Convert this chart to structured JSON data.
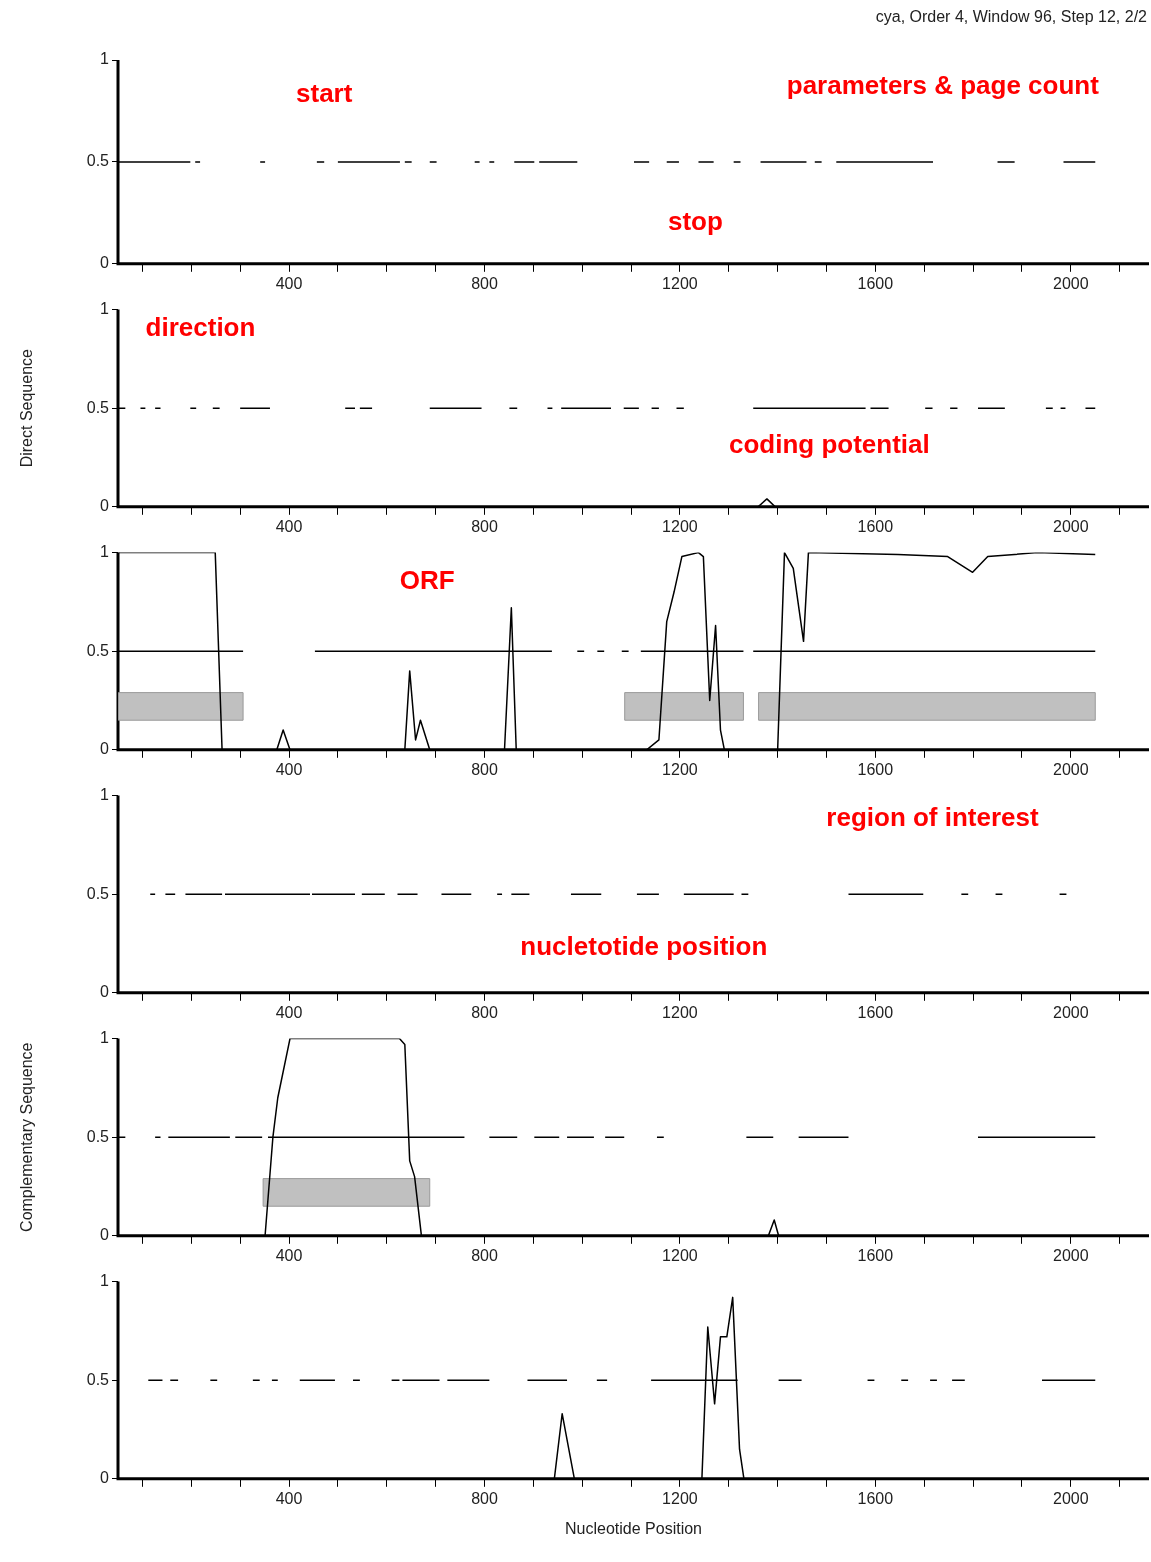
{
  "chart_data": [
    {
      "type": "line",
      "title": "cya, Order 4, Window 96, Step 12, 2/2",
      "xlim": [
        50,
        2160
      ],
      "ylim": [
        0,
        1
      ],
      "yticks": [
        0,
        0.5,
        1
      ],
      "xticks": [
        {
          "value": 100,
          "label": null
        },
        {
          "value": 200,
          "label": null
        },
        {
          "value": 300,
          "label": null
        },
        400,
        {
          "value": 500,
          "label": null
        },
        {
          "value": 600,
          "label": null
        },
        {
          "value": 700,
          "label": null
        },
        800,
        {
          "value": 900,
          "label": null
        },
        {
          "value": 1000,
          "label": null
        },
        {
          "value": 1100,
          "label": null
        },
        1200,
        {
          "value": 1300,
          "label": null
        },
        {
          "value": 1400,
          "label": null
        },
        {
          "value": 1500,
          "label": null
        },
        1600,
        {
          "value": 1700,
          "label": null
        },
        {
          "value": 1800,
          "label": null
        },
        {
          "value": 1900,
          "label": null
        },
        2000,
        {
          "value": 2100,
          "label": null
        }
      ],
      "grid": false,
      "legend": false,
      "marker": "none",
      "series": [
        {
          "color": "#000000",
          "x": [
            51,
            198,
            null,
            208,
            218,
            null,
            341,
            351,
            null,
            457,
            472,
            null,
            500,
            627,
            null,
            637,
            651,
            null,
            688,
            702,
            null,
            780,
            790,
            null,
            810,
            820,
            null,
            861,
            902,
            null,
            912,
            990,
            null,
            1106,
            1137,
            null,
            1173,
            1198,
            null,
            1238,
            1269,
            null,
            1310,
            1324,
            null,
            1365,
            1459,
            null,
            1476,
            1490,
            null,
            1520,
            1718,
            null,
            1850,
            1885,
            null,
            1985,
            2050
          ],
          "values": [
            0.5,
            0.5,
            null,
            0.5,
            0.5,
            null,
            0.5,
            0.5,
            null,
            0.5,
            0.5,
            null,
            0.5,
            0.5,
            null,
            0.5,
            0.5,
            null,
            0.5,
            0.5,
            null,
            0.5,
            0.5,
            null,
            0.5,
            0.5,
            null,
            0.5,
            0.5,
            null,
            0.5,
            0.5,
            null,
            0.5,
            0.5,
            null,
            0.5,
            0.5,
            null,
            0.5,
            0.5,
            null,
            0.5,
            0.5,
            null,
            0.5,
            0.5,
            null,
            0.5,
            0.5,
            null,
            0.5,
            0.5,
            null,
            0.5,
            0.5,
            null,
            0.5,
            0.5
          ]
        }
      ],
      "annotations": [
        "start",
        "stop",
        "parameters & page count"
      ]
    },
    {
      "type": "line",
      "ylabel": "Direct Sequence",
      "xlim": [
        50,
        2160
      ],
      "ylim": [
        0,
        1
      ],
      "yticks": [
        0,
        0.5,
        1
      ],
      "xticks": [
        {
          "value": 100,
          "label": null
        },
        {
          "value": 200,
          "label": null
        },
        {
          "value": 300,
          "label": null
        },
        400,
        {
          "value": 500,
          "label": null
        },
        {
          "value": 600,
          "label": null
        },
        {
          "value": 700,
          "label": null
        },
        800,
        {
          "value": 900,
          "label": null
        },
        {
          "value": 1000,
          "label": null
        },
        {
          "value": 1100,
          "label": null
        },
        1200,
        {
          "value": 1300,
          "label": null
        },
        {
          "value": 1400,
          "label": null
        },
        {
          "value": 1500,
          "label": null
        },
        1600,
        {
          "value": 1700,
          "label": null
        },
        {
          "value": 1800,
          "label": null
        },
        {
          "value": 1900,
          "label": null
        },
        2000,
        {
          "value": 2100,
          "label": null
        }
      ],
      "grid": false,
      "legend": false,
      "marker": "none",
      "series": [
        {
          "color": "#000000",
          "x": [
            1360,
            1378,
            1395
          ],
          "values": [
            0,
            0.04,
            0
          ]
        },
        {
          "color": "#000000",
          "x": [
            51,
            65,
            null,
            96,
            106,
            null,
            126,
            137,
            null,
            198,
            210,
            null,
            244,
            258,
            null,
            300,
            361,
            null,
            515,
            535,
            null,
            545,
            570,
            null,
            688,
            794,
            null,
            851,
            867,
            null,
            929,
            939,
            null,
            957,
            1059,
            null,
            1085,
            1116,
            null,
            1142,
            1157,
            null,
            1193,
            1208,
            null,
            1350,
            1580,
            null,
            1590,
            1627,
            null,
            1702,
            1717,
            null,
            1753,
            1768,
            null,
            1810,
            1865,
            null,
            1949,
            1963,
            null,
            1979,
            1989,
            null,
            2030,
            2050
          ],
          "values": [
            0.5,
            0.5,
            null,
            0.5,
            0.5,
            null,
            0.5,
            0.5,
            null,
            0.5,
            0.5,
            null,
            0.5,
            0.5,
            null,
            0.5,
            0.5,
            null,
            0.5,
            0.5,
            null,
            0.5,
            0.5,
            null,
            0.5,
            0.5,
            null,
            0.5,
            0.5,
            null,
            0.5,
            0.5,
            null,
            0.5,
            0.5,
            null,
            0.5,
            0.5,
            null,
            0.5,
            0.5,
            null,
            0.5,
            0.5,
            null,
            0.5,
            0.5,
            null,
            0.5,
            0.5,
            null,
            0.5,
            0.5,
            null,
            0.5,
            0.5,
            null,
            0.5,
            0.5,
            null,
            0.5,
            0.5,
            null,
            0.5,
            0.5,
            null,
            0.5,
            0.5
          ]
        }
      ],
      "annotations": [
        "direction",
        "coding potential"
      ]
    },
    {
      "type": "line",
      "xlim": [
        50,
        2160
      ],
      "ylim": [
        0,
        1
      ],
      "yticks": [
        0,
        0.5,
        1
      ],
      "xticks": [
        {
          "value": 100,
          "label": null
        },
        {
          "value": 200,
          "label": null
        },
        {
          "value": 300,
          "label": null
        },
        400,
        {
          "value": 500,
          "label": null
        },
        {
          "value": 600,
          "label": null
        },
        {
          "value": 700,
          "label": null
        },
        800,
        {
          "value": 900,
          "label": null
        },
        {
          "value": 1000,
          "label": null
        },
        {
          "value": 1100,
          "label": null
        },
        1200,
        {
          "value": 1300,
          "label": null
        },
        {
          "value": 1400,
          "label": null
        },
        {
          "value": 1500,
          "label": null
        },
        1600,
        {
          "value": 1700,
          "label": null
        },
        {
          "value": 1800,
          "label": null
        },
        {
          "value": 1900,
          "label": null
        },
        2000,
        {
          "value": 2100,
          "label": null
        }
      ],
      "grid": false,
      "legend": false,
      "marker": "none",
      "bands": [
        {
          "axis": "x",
          "from": 51,
          "to": 306,
          "color": "#c0c0c0"
        },
        {
          "axis": "x",
          "from": 1087,
          "to": 1330,
          "color": "#c0c0c0"
        },
        {
          "axis": "x",
          "from": 1361,
          "to": 2050,
          "color": "#c0c0c0"
        }
      ],
      "series": [
        {
          "color": "#000000",
          "x": [
            51,
            100,
            249,
            263,
            375,
            388,
            402,
            637,
            647,
            659,
            669,
            688,
            841,
            855,
            865,
            1132,
            1157,
            1173,
            1188,
            1204,
            1238,
            1248,
            1261,
            1273,
            1283,
            1291,
            1400,
            1414,
            1432,
            1453,
            1463,
            1646,
            1748,
            1799,
            1830,
            1932,
            2050
          ],
          "values": [
            1,
            1,
            1,
            0,
            0,
            0.1,
            0,
            0,
            0.4,
            0.05,
            0.15,
            0,
            0,
            0.72,
            0,
            0,
            0.05,
            0.65,
            0.8,
            0.98,
            1,
            0.98,
            0.25,
            0.63,
            0.1,
            0,
            0,
            1,
            0.92,
            0.55,
            1,
            0.99,
            0.98,
            0.9,
            0.98,
            1,
            0.99
          ]
        },
        {
          "color": "#000000",
          "x": [
            51,
            306,
            null,
            453,
            938,
            null,
            990,
            1004,
            null,
            1031,
            1045,
            null,
            1081,
            1095,
            null,
            1120,
            1330,
            null,
            1350,
            2050
          ],
          "values": [
            0.5,
            0.5,
            null,
            0.5,
            0.5,
            null,
            0.5,
            0.5,
            null,
            0.5,
            0.5,
            null,
            0.5,
            0.5,
            null,
            0.5,
            0.5,
            null,
            0.5,
            0.5
          ]
        }
      ],
      "annotations": [
        "ORF"
      ]
    },
    {
      "type": "line",
      "xlim": [
        50,
        2160
      ],
      "ylim": [
        0,
        1
      ],
      "yticks": [
        0,
        0.5,
        1
      ],
      "xticks": [
        {
          "value": 100,
          "label": null
        },
        {
          "value": 200,
          "label": null
        },
        {
          "value": 300,
          "label": null
        },
        400,
        {
          "value": 500,
          "label": null
        },
        {
          "value": 600,
          "label": null
        },
        {
          "value": 700,
          "label": null
        },
        800,
        {
          "value": 900,
          "label": null
        },
        {
          "value": 1000,
          "label": null
        },
        {
          "value": 1100,
          "label": null
        },
        1200,
        {
          "value": 1300,
          "label": null
        },
        {
          "value": 1400,
          "label": null
        },
        {
          "value": 1500,
          "label": null
        },
        1600,
        {
          "value": 1700,
          "label": null
        },
        {
          "value": 1800,
          "label": null
        },
        {
          "value": 1900,
          "label": null
        },
        2000,
        {
          "value": 2100,
          "label": null
        }
      ],
      "grid": false,
      "legend": false,
      "marker": "none",
      "series": [
        {
          "color": "#000000",
          "x": [
            116,
            126,
            null,
            147,
            167,
            null,
            188,
            263,
            null,
            269,
            443,
            null,
            447,
            535,
            null,
            549,
            596,
            null,
            622,
            663,
            null,
            712,
            773,
            null,
            826,
            836,
            null,
            855,
            892,
            null,
            977,
            1039,
            null,
            1112,
            1157,
            null,
            1208,
            1310,
            null,
            1326,
            1340,
            null,
            1545,
            1698,
            null,
            1776,
            1790,
            null,
            1846,
            1860,
            null,
            1977,
            1991
          ],
          "values": [
            0.5,
            0.5,
            null,
            0.5,
            0.5,
            null,
            0.5,
            0.5,
            null,
            0.5,
            0.5,
            null,
            0.5,
            0.5,
            null,
            0.5,
            0.5,
            null,
            0.5,
            0.5,
            null,
            0.5,
            0.5,
            null,
            0.5,
            0.5,
            null,
            0.5,
            0.5,
            null,
            0.5,
            0.5,
            null,
            0.5,
            0.5,
            null,
            0.5,
            0.5,
            null,
            0.5,
            0.5,
            null,
            0.5,
            0.5,
            null,
            0.5,
            0.5,
            null,
            0.5,
            0.5,
            null,
            0.5,
            0.5
          ]
        }
      ],
      "annotations": [
        "region of interest",
        "nucletotide position"
      ]
    },
    {
      "type": "line",
      "ylabel": "Complementary Sequence",
      "xlim": [
        50,
        2160
      ],
      "ylim": [
        0,
        1
      ],
      "yticks": [
        0,
        0.5,
        1
      ],
      "xticks": [
        {
          "value": 100,
          "label": null
        },
        {
          "value": 200,
          "label": null
        },
        {
          "value": 300,
          "label": null
        },
        400,
        {
          "value": 500,
          "label": null
        },
        {
          "value": 600,
          "label": null
        },
        {
          "value": 700,
          "label": null
        },
        800,
        {
          "value": 900,
          "label": null
        },
        {
          "value": 1000,
          "label": null
        },
        {
          "value": 1100,
          "label": null
        },
        1200,
        {
          "value": 1300,
          "label": null
        },
        {
          "value": 1400,
          "label": null
        },
        {
          "value": 1500,
          "label": null
        },
        1600,
        {
          "value": 1700,
          "label": null
        },
        {
          "value": 1800,
          "label": null
        },
        {
          "value": 1900,
          "label": null
        },
        2000,
        {
          "value": 2100,
          "label": null
        }
      ],
      "grid": false,
      "legend": false,
      "marker": "none",
      "bands": [
        {
          "axis": "x",
          "from": 347,
          "to": 688,
          "color": "#c0c0c0"
        }
      ],
      "series": [
        {
          "color": "#000000",
          "x": [
            51,
            351,
            367,
            377,
            402,
            626,
            637,
            647,
            657,
            671,
            1381,
            1393,
            1402,
            2050
          ],
          "values": [
            0,
            0,
            0.5,
            0.7,
            1,
            1,
            0.97,
            0.38,
            0.3,
            0,
            0,
            0.08,
            0,
            0
          ]
        },
        {
          "color": "#000000",
          "x": [
            51,
            65,
            null,
            126,
            137,
            null,
            153,
            279,
            null,
            290,
            345,
            null,
            357,
            759,
            null,
            810,
            867,
            null,
            902,
            953,
            null,
            969,
            1024,
            null,
            1047,
            1086,
            null,
            1153,
            1167,
            null,
            1336,
            1391,
            null,
            1443,
            1545,
            null,
            1810,
            2050
          ],
          "values": [
            0.5,
            0.5,
            null,
            0.5,
            0.5,
            null,
            0.5,
            0.5,
            null,
            0.5,
            0.5,
            null,
            0.5,
            0.5,
            null,
            0.5,
            0.5,
            null,
            0.5,
            0.5,
            null,
            0.5,
            0.5,
            null,
            0.5,
            0.5,
            null,
            0.5,
            0.5,
            null,
            0.5,
            0.5,
            null,
            0.5,
            0.5,
            null,
            0.5,
            0.5
          ]
        }
      ]
    },
    {
      "type": "line",
      "xlabel": "Nucleotide Position",
      "xlim": [
        50,
        2160
      ],
      "ylim": [
        0,
        1
      ],
      "yticks": [
        0,
        0.5,
        1
      ],
      "xticks": [
        {
          "value": 100,
          "label": null
        },
        {
          "value": 200,
          "label": null
        },
        {
          "value": 300,
          "label": null
        },
        400,
        {
          "value": 500,
          "label": null
        },
        {
          "value": 600,
          "label": null
        },
        {
          "value": 700,
          "label": null
        },
        800,
        {
          "value": 900,
          "label": null
        },
        {
          "value": 1000,
          "label": null
        },
        {
          "value": 1100,
          "label": null
        },
        1200,
        {
          "value": 1300,
          "label": null
        },
        {
          "value": 1400,
          "label": null
        },
        {
          "value": 1500,
          "label": null
        },
        1600,
        {
          "value": 1700,
          "label": null
        },
        {
          "value": 1800,
          "label": null
        },
        {
          "value": 1900,
          "label": null
        },
        2000,
        {
          "value": 2100,
          "label": null
        }
      ],
      "grid": false,
      "legend": false,
      "marker": "none",
      "series": [
        {
          "color": "#000000",
          "x": [
            51,
            943,
            959,
            984,
            1245,
            1257,
            1271,
            1283,
            1296,
            1308,
            1322,
            1331,
            2050
          ],
          "values": [
            0,
            0,
            0.33,
            0,
            0,
            0.77,
            0.38,
            0.72,
            0.72,
            0.92,
            0.15,
            0,
            0
          ]
        },
        {
          "color": "#000000",
          "x": [
            112,
            141,
            null,
            157,
            173,
            null,
            239,
            253,
            null,
            326,
            340,
            null,
            365,
            377,
            null,
            422,
            494,
            null,
            531,
            545,
            null,
            610,
            626,
            null,
            632,
            708,
            null,
            724,
            810,
            null,
            888,
            969,
            null,
            1030,
            1051,
            null,
            1141,
            1174,
            null,
            1174,
            1318,
            null,
            1402,
            1449,
            null,
            1584,
            1598,
            null,
            1653,
            1667,
            null,
            1712,
            1726,
            null,
            1757,
            1783,
            null,
            1941,
            2050
          ],
          "values": [
            0.5,
            0.5,
            null,
            0.5,
            0.5,
            null,
            0.5,
            0.5,
            null,
            0.5,
            0.5,
            null,
            0.5,
            0.5,
            null,
            0.5,
            0.5,
            null,
            0.5,
            0.5,
            null,
            0.5,
            0.5,
            null,
            0.5,
            0.5,
            null,
            0.5,
            0.5,
            null,
            0.5,
            0.5,
            null,
            0.5,
            0.5,
            null,
            0.5,
            0.5,
            null,
            0.5,
            0.5,
            null,
            0.5,
            0.5,
            null,
            0.5,
            0.5,
            null,
            0.5,
            0.5,
            null,
            0.5,
            0.5,
            null,
            0.5,
            0.5,
            null,
            0.5,
            0.5
          ]
        }
      ]
    }
  ]
}
